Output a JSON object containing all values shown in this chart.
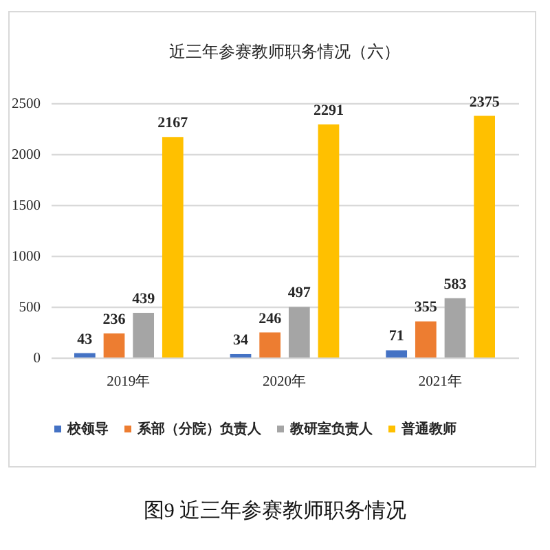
{
  "chart_data": {
    "type": "bar",
    "title": "近三年参赛教师职务情况（六）",
    "categories": [
      "2019年",
      "2020年",
      "2021年"
    ],
    "series": [
      {
        "name": "校领导",
        "color": "#4472c4",
        "values": [
          43,
          34,
          71
        ]
      },
      {
        "name": "系部（分院）负责人",
        "color": "#ed7d31",
        "values": [
          236,
          246,
          355
        ]
      },
      {
        "name": "教研室负责人",
        "color": "#a5a5a5",
        "values": [
          439,
          497,
          583
        ]
      },
      {
        "name": "普通教师",
        "color": "#ffc000",
        "values": [
          2167,
          2291,
          2375
        ]
      }
    ],
    "ylim": [
      0,
      2500
    ],
    "yticks": [
      0,
      500,
      1000,
      1500,
      2000,
      2500
    ],
    "grid": "y",
    "legend": "bottom",
    "data_labels": true,
    "annotations": [
      "图9 近三年参赛教师职务情况"
    ]
  }
}
